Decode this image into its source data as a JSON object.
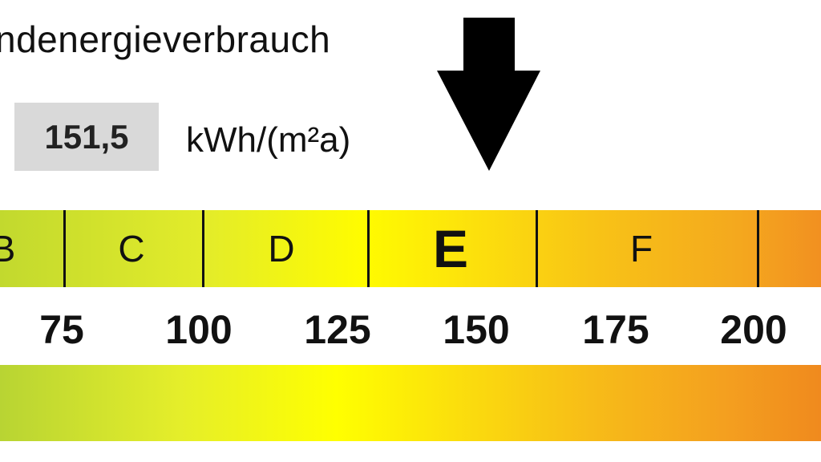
{
  "header": {
    "title": "ndenergieverbrauch"
  },
  "value": {
    "number": "151,5",
    "unit": "kWh/(m²a)"
  },
  "indicator": {
    "icon": "down-arrow-icon",
    "value": 151.5
  },
  "scale": {
    "classes": [
      {
        "label": "B",
        "active": false
      },
      {
        "label": "C",
        "active": false
      },
      {
        "label": "D",
        "active": false
      },
      {
        "label": "E",
        "active": true
      },
      {
        "label": "F",
        "active": false
      }
    ],
    "ticks": [
      "75",
      "100",
      "125",
      "150",
      "175",
      "200"
    ]
  },
  "colors": {
    "green": "#b8d433",
    "yellow": "#ffff00",
    "orange": "#f08a1e"
  }
}
